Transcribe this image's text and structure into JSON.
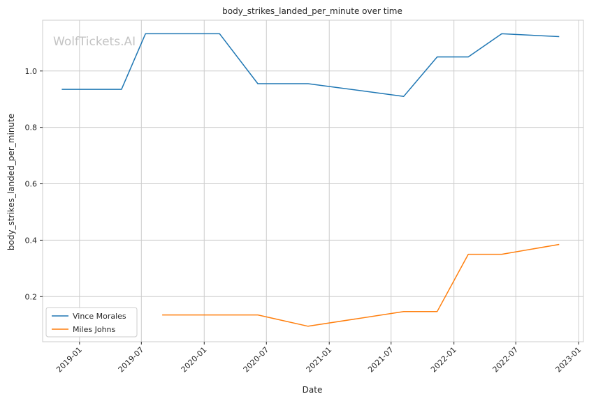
{
  "watermark": "WolfTickets.AI",
  "chart_data": {
    "type": "line",
    "title": "body_strikes_landed_per_minute over time",
    "xlabel": "Date",
    "ylabel": "body_strikes_landed_per_minute",
    "xlim": [
      "2018-09-15",
      "2023-01-15"
    ],
    "ylim": [
      0.04,
      1.18
    ],
    "x_ticks": [
      "2019-01",
      "2019-07",
      "2020-01",
      "2020-07",
      "2021-01",
      "2021-07",
      "2022-01",
      "2022-07",
      "2023-01"
    ],
    "y_ticks": [
      0.2,
      0.4,
      0.6,
      0.8,
      1.0
    ],
    "y_tick_labels": [
      "0.2",
      "0.4",
      "0.6",
      "0.8",
      "1.0"
    ],
    "grid": true,
    "legend_position": "lower-left",
    "series": [
      {
        "name": "Vince Morales",
        "color": "#1f77b4",
        "points": [
          {
            "x": "2018-11-10",
            "y": 0.935
          },
          {
            "x": "2019-05-04",
            "y": 0.935
          },
          {
            "x": "2019-07-13",
            "y": 1.132
          },
          {
            "x": "2020-02-15",
            "y": 1.132
          },
          {
            "x": "2020-06-06",
            "y": 0.955
          },
          {
            "x": "2020-10-31",
            "y": 0.955
          },
          {
            "x": "2021-08-07",
            "y": 0.91
          },
          {
            "x": "2021-11-13",
            "y": 1.05
          },
          {
            "x": "2022-02-12",
            "y": 1.05
          },
          {
            "x": "2022-05-21",
            "y": 1.132
          },
          {
            "x": "2022-11-05",
            "y": 1.122
          }
        ]
      },
      {
        "name": "Miles Johns",
        "color": "#ff7f0e",
        "points": [
          {
            "x": "2019-08-31",
            "y": 0.135
          },
          {
            "x": "2020-06-06",
            "y": 0.135
          },
          {
            "x": "2020-10-31",
            "y": 0.095
          },
          {
            "x": "2021-08-07",
            "y": 0.147
          },
          {
            "x": "2021-11-13",
            "y": 0.147
          },
          {
            "x": "2022-02-12",
            "y": 0.35
          },
          {
            "x": "2022-05-21",
            "y": 0.35
          },
          {
            "x": "2022-11-05",
            "y": 0.385
          }
        ]
      }
    ]
  }
}
